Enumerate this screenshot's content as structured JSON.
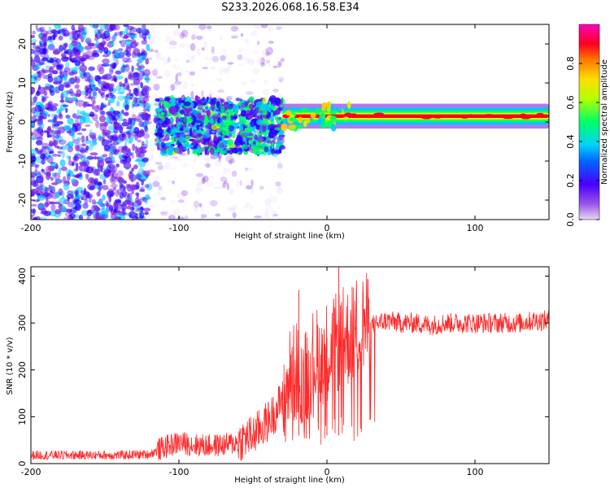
{
  "title": "S233.2026.068.16.58.E34",
  "chart_data": [
    {
      "type": "heatmap",
      "name": "spectrogram",
      "xlabel": "Height of straight line (km)",
      "ylabel": "Frequency (Hz)",
      "xlim": [
        -200,
        150
      ],
      "ylim": [
        -25,
        25
      ],
      "xticks": [
        -200,
        -100,
        0,
        100
      ],
      "yticks": [
        -20,
        -10,
        0,
        10,
        20
      ],
      "colorbar": {
        "label": "Normalized spectral amplitude",
        "range": [
          0,
          1
        ],
        "ticks": [
          0.0,
          0.2,
          0.4,
          0.6,
          0.8
        ],
        "colors": [
          "#e8d8f8",
          "#7a22e0",
          "#2a00ff",
          "#00c8ff",
          "#00ff66",
          "#c8ff00",
          "#ffcc00",
          "#ff6600",
          "#ff0022",
          "#ff00aa"
        ]
      },
      "features": [
        {
          "region": "scattered noise",
          "x_range": [
            -200,
            -120
          ],
          "freq_range": [
            -25,
            25
          ],
          "amplitude": 0.2
        },
        {
          "region": "sparse faint noise",
          "x_range": [
            -120,
            -30
          ],
          "freq_range": [
            -25,
            25
          ],
          "amplitude": 0.05
        },
        {
          "region": "emerging signal",
          "x_range": [
            -115,
            -30
          ],
          "freq_range": [
            -8,
            6
          ],
          "amplitude": 0.3
        },
        {
          "region": "signal line",
          "x_range": [
            -30,
            150
          ],
          "center_freq": 1.5,
          "amplitude": 0.8
        }
      ]
    },
    {
      "type": "line",
      "name": "snr",
      "xlabel": "Height of straight line (km)",
      "ylabel": "SNR (10 * v/v)",
      "xlim": [
        -200,
        150
      ],
      "ylim": [
        0,
        420
      ],
      "xticks": [
        -200,
        -100,
        0,
        100
      ],
      "yticks": [
        0,
        100,
        200,
        300,
        400
      ],
      "color": "#ff2a2a",
      "series": [
        {
          "name": "SNR",
          "x": [
            -200,
            -180,
            -160,
            -140,
            -120,
            -110,
            -100,
            -90,
            -80,
            -70,
            -60,
            -55,
            -50,
            -45,
            -40,
            -35,
            -30,
            -25,
            -20,
            -15,
            -10,
            -5,
            0,
            5,
            10,
            15,
            20,
            25,
            30,
            35,
            40,
            50,
            60,
            70,
            80,
            90,
            100,
            110,
            120,
            130,
            140,
            150
          ],
          "y": [
            18,
            18,
            18,
            18,
            20,
            35,
            45,
            40,
            38,
            40,
            45,
            55,
            60,
            75,
            90,
            110,
            140,
            180,
            200,
            180,
            220,
            230,
            240,
            250,
            270,
            270,
            290,
            300,
            295,
            300,
            305,
            300,
            300,
            295,
            300,
            300,
            300,
            300,
            300,
            300,
            305,
            305
          ]
        }
      ],
      "spikes": [
        {
          "x": -19,
          "y": 370
        },
        {
          "x": 8,
          "y": 420
        },
        {
          "x": 0,
          "y": 270
        }
      ]
    }
  ]
}
